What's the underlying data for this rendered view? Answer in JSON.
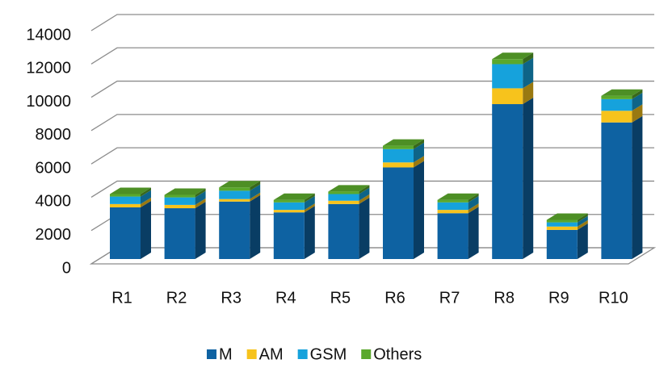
{
  "chart_data": {
    "type": "bar3d_stacked",
    "categories": [
      "R1",
      "R2",
      "R3",
      "R4",
      "R5",
      "R6",
      "R7",
      "R8",
      "R9",
      "R10"
    ],
    "series": [
      {
        "name": "M",
        "color": "#0e62a2",
        "values": [
          3100,
          3050,
          3450,
          2800,
          3300,
          5500,
          2750,
          9300,
          1750,
          8200
        ]
      },
      {
        "name": "AM",
        "color": "#f7c31c",
        "values": [
          200,
          200,
          150,
          150,
          200,
          300,
          200,
          950,
          200,
          700
        ]
      },
      {
        "name": "GSM",
        "color": "#16a2dc",
        "values": [
          450,
          450,
          500,
          450,
          400,
          800,
          450,
          1450,
          250,
          700
        ]
      },
      {
        "name": "Others",
        "color": "#5aa82c",
        "values": [
          150,
          150,
          200,
          150,
          150,
          200,
          150,
          300,
          150,
          200
        ]
      }
    ],
    "ylim": [
      0,
      14000
    ],
    "yticks": [
      0,
      2000,
      4000,
      6000,
      8000,
      10000,
      12000,
      14000
    ],
    "grid": true,
    "legend": "bottom"
  }
}
